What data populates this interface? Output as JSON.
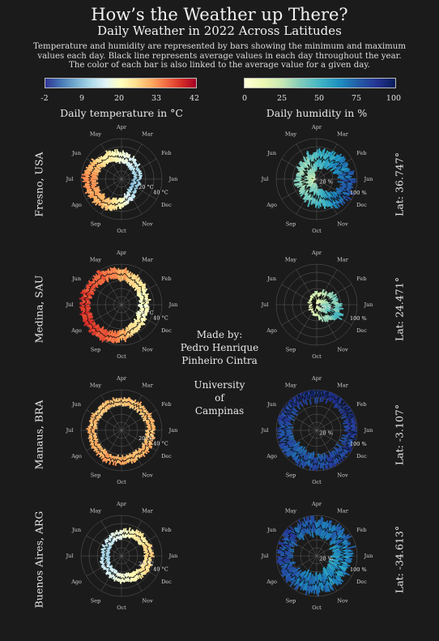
{
  "header": {
    "title": "How’s the Weather up There?",
    "subtitle": "Daily Weather in 2022 Across Latitudes",
    "description": "Temperature and humidity are represented by bars showing the minimum and maximum values each day. Black line represents average values in each day throughout the year. The color of each bar is also linked to the average value for a given day."
  },
  "legend": {
    "temperature_ticks": [
      "-2",
      "9",
      "20",
      "33",
      "42"
    ],
    "humidity_ticks": [
      "0",
      "25",
      "50",
      "75",
      "100"
    ],
    "temperature_title": "Daily temperature in °C",
    "humidity_title": "Daily humidity in %"
  },
  "credit": {
    "made_by": "Made by:",
    "author_line1": "Pedro Henrique",
    "author_line2": "Pinheiro Cintra",
    "uni_line1": "University",
    "uni_line2": "of",
    "uni_line3": "Campinas"
  },
  "months": [
    "Jan",
    "Feb",
    "Mar",
    "Apr",
    "May",
    "Jun",
    "Jul",
    "Ago",
    "Sep",
    "Oct",
    "Nov",
    "Dec"
  ],
  "chart_data": {
    "type": "polar-bar",
    "temp_radial_labels": [
      "20 °C",
      "40 °C"
    ],
    "humidity_radial_labels": [
      "20 %",
      "100 %"
    ],
    "colorscale_temperature": [
      "#313695",
      "#4575b4",
      "#74add1",
      "#abd9e9",
      "#e0f3f8",
      "#ffffbf",
      "#fee090",
      "#fdae61",
      "#f46d43",
      "#d73027",
      "#a50026"
    ],
    "colorscale_humidity": [
      "#ffffd9",
      "#edf8b1",
      "#c7e9b4",
      "#7fcdbb",
      "#41b6c4",
      "#1d91c0",
      "#225ea8",
      "#253494",
      "#081d58"
    ],
    "cities": [
      {
        "name": "Fresno, USA",
        "latitude": "Lat: 36.747°",
        "temp_avg_monthly": [
          10,
          12,
          15,
          18,
          22,
          27,
          31,
          30,
          27,
          20,
          13,
          9
        ],
        "temp_range_monthly": [
          8,
          9,
          11,
          13,
          14,
          15,
          15,
          15,
          14,
          13,
          10,
          8
        ],
        "humidity_avg_monthly": [
          75,
          65,
          55,
          45,
          38,
          32,
          30,
          32,
          35,
          45,
          60,
          75
        ],
        "humidity_range_monthly": [
          30,
          35,
          40,
          40,
          38,
          35,
          32,
          32,
          35,
          40,
          40,
          30
        ]
      },
      {
        "name": "Medina, SAU",
        "latitude": "Lat: 24.471°",
        "temp_avg_monthly": [
          19,
          21,
          25,
          29,
          33,
          36,
          37,
          37,
          35,
          30,
          24,
          20
        ],
        "temp_range_monthly": [
          11,
          12,
          12,
          13,
          13,
          13,
          12,
          12,
          13,
          13,
          12,
          11
        ],
        "humidity_avg_monthly": [
          38,
          30,
          22,
          18,
          12,
          9,
          9,
          10,
          11,
          15,
          28,
          40
        ],
        "humidity_range_monthly": [
          35,
          30,
          22,
          20,
          14,
          10,
          10,
          12,
          12,
          18,
          30,
          38
        ]
      },
      {
        "name": "Manaus, BRA",
        "latitude": "Lat: -3.107°",
        "temp_avg_monthly": [
          27,
          27,
          27,
          27,
          27,
          27,
          28,
          28,
          29,
          29,
          28,
          28
        ],
        "temp_range_monthly": [
          9,
          9,
          9,
          9,
          9,
          9,
          10,
          10,
          10,
          10,
          10,
          9
        ],
        "humidity_avg_monthly": [
          88,
          89,
          90,
          90,
          88,
          85,
          80,
          78,
          76,
          78,
          80,
          85
        ],
        "humidity_range_monthly": [
          25,
          25,
          25,
          25,
          25,
          28,
          32,
          34,
          35,
          33,
          32,
          28
        ]
      },
      {
        "name": "Buenos Aires, ARG",
        "latitude": "Lat: -34.613°",
        "temp_avg_monthly": [
          25,
          24,
          22,
          18,
          15,
          12,
          11,
          13,
          15,
          18,
          21,
          24
        ],
        "temp_range_monthly": [
          10,
          10,
          10,
          9,
          9,
          8,
          8,
          9,
          9,
          10,
          10,
          10
        ],
        "humidity_avg_monthly": [
          65,
          68,
          72,
          75,
          78,
          80,
          80,
          75,
          70,
          68,
          65,
          63
        ],
        "humidity_range_monthly": [
          40,
          40,
          38,
          35,
          32,
          30,
          30,
          35,
          38,
          40,
          40,
          40
        ]
      }
    ]
  }
}
